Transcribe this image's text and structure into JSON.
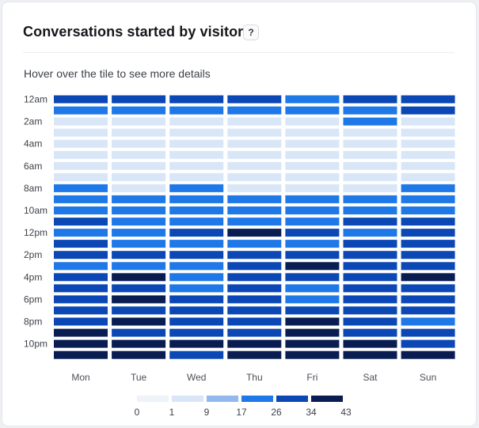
{
  "widget": {
    "title": "Conversations started by visitors",
    "help_label": "?",
    "hint": "Hover over the tile to see more details"
  },
  "chart_data": {
    "type": "heatmap",
    "title": "Conversations started by visitors",
    "columns": [
      "Mon",
      "Tue",
      "Wed",
      "Thu",
      "Fri",
      "Sat",
      "Sun"
    ],
    "rows": [
      "12am",
      "1am",
      "2am",
      "3am",
      "4am",
      "5am",
      "6am",
      "7am",
      "8am",
      "9am",
      "10am",
      "11am",
      "12pm",
      "1pm",
      "2pm",
      "3pm",
      "4pm",
      "5pm",
      "6pm",
      "7pm",
      "8pm",
      "9pm",
      "10pm",
      "11pm"
    ],
    "row_tick_labels": [
      "12am",
      "2am",
      "4am",
      "6am",
      "8am",
      "10am",
      "12pm",
      "2pm",
      "4pm",
      "6pm",
      "8pm",
      "10pm"
    ],
    "level_colors": [
      "#eef2f9",
      "#d8e6f8",
      "#92b8ef",
      "#1f78e8",
      "#0c48b5",
      "#0a1d52"
    ],
    "legend_ticks": [
      0,
      1,
      9,
      17,
      26,
      34,
      43
    ],
    "values": [
      [
        26,
        26,
        26,
        26,
        17,
        26,
        26
      ],
      [
        17,
        17,
        17,
        17,
        17,
        17,
        26
      ],
      [
        1,
        1,
        1,
        1,
        1,
        17,
        1
      ],
      [
        1,
        1,
        1,
        1,
        1,
        1,
        1
      ],
      [
        1,
        1,
        1,
        1,
        1,
        1,
        1
      ],
      [
        1,
        1,
        1,
        1,
        1,
        1,
        1
      ],
      [
        1,
        1,
        1,
        1,
        1,
        1,
        1
      ],
      [
        1,
        1,
        1,
        1,
        1,
        1,
        1
      ],
      [
        17,
        1,
        17,
        1,
        1,
        1,
        17
      ],
      [
        17,
        17,
        17,
        17,
        17,
        17,
        17
      ],
      [
        17,
        17,
        17,
        17,
        17,
        17,
        17
      ],
      [
        26,
        17,
        17,
        17,
        17,
        26,
        26
      ],
      [
        17,
        17,
        26,
        34,
        26,
        17,
        26
      ],
      [
        26,
        17,
        17,
        17,
        17,
        26,
        26
      ],
      [
        26,
        26,
        26,
        26,
        26,
        26,
        26
      ],
      [
        17,
        17,
        17,
        26,
        34,
        26,
        26
      ],
      [
        26,
        34,
        17,
        26,
        26,
        26,
        34
      ],
      [
        26,
        26,
        17,
        26,
        17,
        26,
        26
      ],
      [
        26,
        34,
        26,
        26,
        17,
        26,
        26
      ],
      [
        26,
        26,
        26,
        26,
        26,
        26,
        26
      ],
      [
        26,
        34,
        26,
        26,
        34,
        26,
        17
      ],
      [
        34,
        26,
        26,
        26,
        34,
        26,
        26
      ],
      [
        34,
        34,
        34,
        34,
        34,
        34,
        26
      ],
      [
        43,
        34,
        26,
        34,
        34,
        43,
        43
      ]
    ]
  }
}
